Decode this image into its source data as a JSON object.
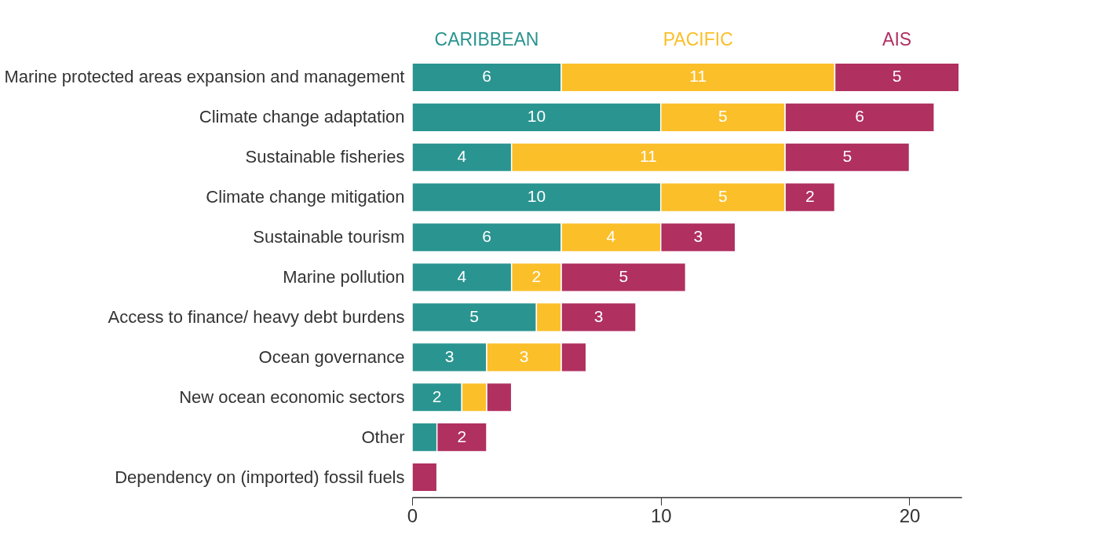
{
  "chart_data": {
    "type": "bar",
    "orientation": "horizontal",
    "stacked": true,
    "legend": "top",
    "grid": false,
    "categories": [
      "Marine protected areas expansion and management",
      "Climate change adaptation",
      "Sustainable fisheries",
      "Climate change mitigation",
      "Sustainable tourism",
      "Marine pollution",
      "Access to finance/ heavy debt burdens",
      "Ocean governance",
      "New ocean economic sectors",
      "Other",
      "Dependency on (imported) fossil fuels"
    ],
    "series": [
      {
        "name": "CARIBBEAN",
        "color": "#2a9490",
        "values": [
          6,
          10,
          4,
          10,
          6,
          4,
          5,
          3,
          2,
          1,
          0
        ],
        "value_labels": [
          "6",
          "10",
          "4",
          "10",
          "6",
          "4",
          "5",
          "3",
          "2",
          null,
          null
        ]
      },
      {
        "name": "PACIFIC",
        "color": "#fbbf2a",
        "values": [
          11,
          5,
          11,
          5,
          4,
          2,
          1,
          3,
          1,
          0,
          0
        ],
        "value_labels": [
          "11",
          "5",
          "11",
          "5",
          "4",
          "2",
          null,
          "3",
          null,
          null,
          null
        ]
      },
      {
        "name": "AIS",
        "color": "#b03060",
        "values": [
          5,
          6,
          5,
          2,
          3,
          5,
          3,
          1,
          1,
          2,
          1
        ],
        "value_labels": [
          "5",
          "6",
          "5",
          "2",
          "3",
          "5",
          "3",
          null,
          null,
          "2",
          null
        ]
      }
    ],
    "xlim": [
      0,
      22.1
    ],
    "xticks": [
      0,
      10,
      20
    ]
  }
}
